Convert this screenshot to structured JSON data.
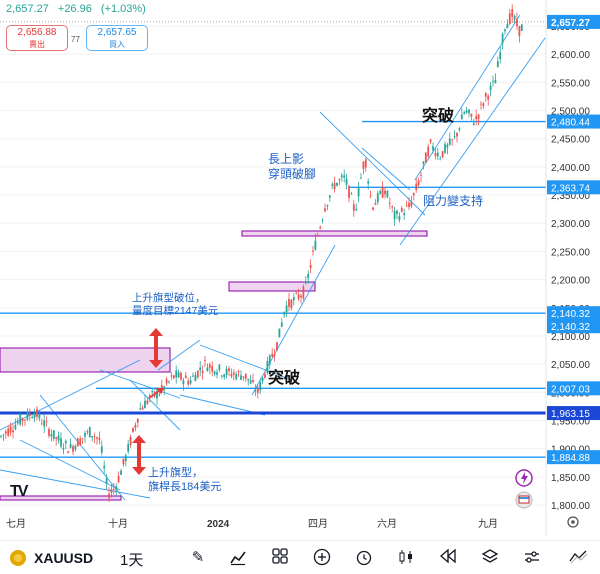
{
  "header": {
    "price": "2,657.27",
    "change": "+26.96",
    "change_pct": "(+1.03%)",
    "sell_price": "2,656.88",
    "sell_label": "賣出",
    "spread": "77",
    "buy_price": "2,657.65",
    "buy_label": "買入"
  },
  "chart_data": {
    "type": "candlestick",
    "symbol": "XAUUSD",
    "ylim": [
      1780,
      2700
    ],
    "y_ticks": [
      "2,650.00",
      "2,600.00",
      "2,550.00",
      "2,500.00",
      "2,450.00",
      "2,400.00",
      "2,350.00",
      "2,300.00",
      "2,250.00",
      "2,200.00",
      "2,150.00",
      "2,100.00",
      "2,050.00",
      "2,000.00",
      "1,950.00",
      "1,900.00",
      "1,850.00",
      "1,800.00"
    ],
    "x_ticks": [
      "七月",
      "十月",
      "2024",
      "四月",
      "六月",
      "九月"
    ],
    "price_tags": [
      {
        "value": 2657.27,
        "label": "2,657.27",
        "style": "last"
      },
      {
        "value": 2480.44,
        "label": "2,480.44",
        "style": "level"
      },
      {
        "value": 2363.74,
        "label": "2,363.74",
        "style": "level"
      },
      {
        "value": 2140.32,
        "label": "2,140.32",
        "style": "level"
      },
      {
        "value": 2140.32,
        "label": "2,140.32",
        "style": "level"
      },
      {
        "value": 2007.03,
        "label": "2,007.03",
        "style": "level"
      },
      {
        "value": 1963.15,
        "label": "1,963.15",
        "style": "strong"
      },
      {
        "value": 1884.88,
        "label": "1,884.88",
        "style": "level"
      }
    ],
    "annotations": [
      {
        "text": "突破",
        "style": "large"
      },
      {
        "text": "長上影",
        "style": "blue"
      },
      {
        "text": "穿頭破腳",
        "style": "blue"
      },
      {
        "text": "阻力變支持",
        "style": "blue"
      },
      {
        "text": "上升旗型破位，",
        "style": "blue"
      },
      {
        "text": "量度目標2147美元",
        "style": "blue"
      },
      {
        "text": "突破",
        "style": "large"
      },
      {
        "text": "上升旗型，",
        "style": "blue"
      },
      {
        "text": "旗桿長184美元",
        "style": "blue"
      }
    ]
  },
  "toolbar": {
    "symbol": "XAUUSD",
    "timeframe": "1天"
  },
  "colors": {
    "up": "#26a69a",
    "down": "#ef5350",
    "line": "#2196f3",
    "strong_line": "#1a47d6",
    "zone_fill": "#e8c5ea",
    "zone_border": "#9c27b0"
  }
}
